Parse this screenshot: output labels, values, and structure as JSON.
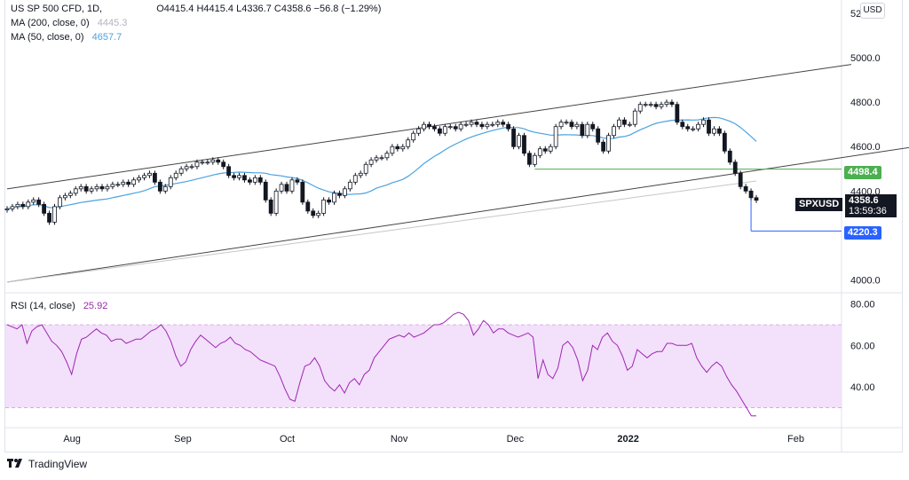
{
  "legend": {
    "title": "US SP 500 CFD, 1D,",
    "ohlc": "O4415.4  H4415.4  L4336.7  C4358.6  −56.8 (−1.29%)",
    "ma200_label": "MA (200, close, 0)",
    "ma200_value": "4445.3",
    "ma50_label": "MA (50, close, 0)",
    "ma50_value": "4657.7",
    "rsi_label": "RSI (14, close)",
    "rsi_value": "25.92"
  },
  "currency": "USD",
  "symbol": "SPXUSD",
  "last_price": "4358.6",
  "countdown": "13:59:36",
  "level_high_label": "4498.4",
  "level_low_label": "4220.3",
  "brand": "TradingView",
  "colors": {
    "up": "#ffffff",
    "down": "#131722",
    "ma50": "#4aa3df",
    "ma200": "#c7c7c7",
    "rsi": "#9c27b0",
    "rsi_band": "#f3e0fb",
    "green_line": "#4caf50",
    "blue_line": "#2962ff"
  },
  "chart_data": [
    {
      "type": "candlestick",
      "title": "US SP 500 CFD, 1D",
      "y_axis": {
        "ticks": [
          "5200.0",
          "5000.0",
          "4800.0",
          "4600.0",
          "4400.0",
          "4200.0",
          "4000.0"
        ],
        "range": [
          3950,
          5220
        ]
      },
      "x_axis": {
        "ticks": [
          "Aug",
          "Sep",
          "Oct",
          "Nov",
          "Dec",
          "2022",
          "Feb"
        ]
      },
      "close_series": [
        4320,
        4330,
        4340,
        4330,
        4350,
        4360,
        4340,
        4300,
        4260,
        4330,
        4370,
        4380,
        4390,
        4410,
        4420,
        4400,
        4410,
        4420,
        4410,
        4420,
        4430,
        4430,
        4440,
        4430,
        4450,
        4460,
        4470,
        4480,
        4440,
        4400,
        4420,
        4460,
        4480,
        4500,
        4510,
        4510,
        4530,
        4530,
        4530,
        4540,
        4530,
        4510,
        4470,
        4460,
        4470,
        4450,
        4440,
        4460,
        4440,
        4360,
        4300,
        4400,
        4430,
        4400,
        4450,
        4440,
        4350,
        4310,
        4290,
        4300,
        4360,
        4350,
        4390,
        4380,
        4410,
        4440,
        4470,
        4480,
        4520,
        4540,
        4550,
        4550,
        4570,
        4600,
        4590,
        4600,
        4630,
        4660,
        4680,
        4700,
        4690,
        4680,
        4660,
        4690,
        4690,
        4680,
        4700,
        4700,
        4710,
        4700,
        4690,
        4700,
        4700,
        4710,
        4700,
        4680,
        4600,
        4650,
        4570,
        4520,
        4560,
        4590,
        4580,
        4600,
        4690,
        4710,
        4710,
        4690,
        4700,
        4650,
        4700,
        4680,
        4620,
        4580,
        4650,
        4690,
        4720,
        4700,
        4700,
        4760,
        4790,
        4790,
        4790,
        4780,
        4790,
        4800,
        4790,
        4710,
        4690,
        4680,
        4680,
        4700,
        4720,
        4660,
        4680,
        4660,
        4580,
        4530,
        4480,
        4420,
        4400,
        4370,
        4358.6
      ],
      "series": [
        {
          "name": "MA (200, close, 0)",
          "last": 4445.3
        },
        {
          "name": "MA (50, close, 0)",
          "last": 4657.7
        }
      ],
      "channel_lines": {
        "upper": [
          [
            0,
            4410
          ],
          [
            160,
            4970
          ]
        ],
        "lower": [
          [
            0,
            3990
          ],
          [
            175,
            4610
          ]
        ]
      },
      "horizontal_levels": [
        4498.4,
        4220.3
      ],
      "last": 4358.6
    },
    {
      "type": "line",
      "title": "RSI (14, close)",
      "y_axis": {
        "ticks": [
          "80.00",
          "60.00",
          "40.00"
        ],
        "range": [
          22,
          82
        ],
        "band": [
          30,
          70
        ]
      },
      "values": [
        70,
        69,
        68,
        70,
        61,
        67,
        69,
        70,
        66,
        62,
        60,
        57,
        52,
        46,
        56,
        63,
        64,
        66,
        68,
        66,
        65,
        62,
        63,
        63,
        61,
        62,
        63,
        63,
        65,
        67,
        68,
        70,
        67,
        62,
        55,
        50,
        52,
        58,
        62,
        65,
        63,
        61,
        59,
        61,
        62,
        64,
        61,
        60,
        58,
        57,
        55,
        53,
        52,
        51,
        50,
        45,
        39,
        34,
        33,
        42,
        50,
        51,
        54,
        50,
        43,
        40,
        38,
        41,
        37,
        42,
        44,
        41,
        46,
        48,
        54,
        57,
        60,
        63,
        64,
        65,
        64,
        66,
        64,
        65,
        66,
        68,
        70,
        70,
        71,
        73,
        75,
        76,
        75,
        72,
        65,
        68,
        72,
        70,
        66,
        68,
        68,
        66,
        65,
        64,
        65,
        66,
        64,
        44,
        53,
        46,
        44,
        49,
        60,
        62,
        59,
        53,
        43,
        48,
        60,
        58,
        64,
        66,
        62,
        60,
        55,
        48,
        50,
        58,
        56,
        54,
        56,
        57,
        57,
        61,
        61,
        60,
        60,
        60,
        61,
        54,
        50,
        47,
        50,
        52,
        50,
        45,
        41,
        38,
        34,
        30,
        26,
        26
      ],
      "last": 25.92
    }
  ]
}
